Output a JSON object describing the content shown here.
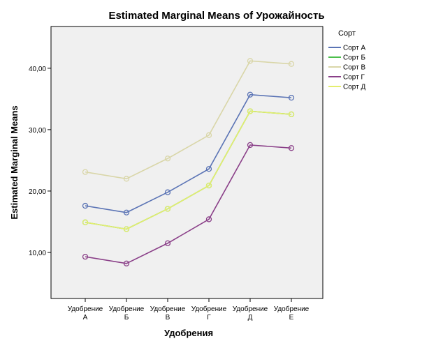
{
  "chart_data": {
    "type": "line",
    "title": "Estimated Marginal Means of Урожайность",
    "xlabel": "Удобрения",
    "ylabel": "Estimated Marginal Means",
    "categories": [
      [
        "Удобрение",
        "А"
      ],
      [
        "Удобрение",
        "Б"
      ],
      [
        "Удобрение",
        "В"
      ],
      [
        "Удобрение",
        "Г"
      ],
      [
        "Удобрение",
        "Д"
      ],
      [
        "Удобрение",
        "Е"
      ]
    ],
    "ylim": [
      2.5,
      46.8
    ],
    "yticks": [
      10,
      20,
      30,
      40
    ],
    "ytick_labels": [
      "10,00",
      "20,00",
      "30,00",
      "40,00"
    ],
    "grid": false,
    "legend": {
      "title": "Сорт",
      "position": "right"
    },
    "series": [
      {
        "name": "Сорт А",
        "color": "#5b74b5",
        "values": [
          17.6,
          16.5,
          19.8,
          23.6,
          35.7,
          35.2
        ]
      },
      {
        "name": "Сорт Б",
        "color": "#4cbf4c",
        "values": [
          14.9,
          13.8,
          17.1,
          20.9,
          33.0,
          32.5
        ]
      },
      {
        "name": "Сорт В",
        "color": "#d9d6a8",
        "values": [
          23.1,
          22.0,
          25.3,
          29.1,
          41.2,
          40.7
        ]
      },
      {
        "name": "Сорт Г",
        "color": "#8a3f88",
        "values": [
          9.3,
          8.2,
          11.5,
          15.4,
          27.5,
          27.0
        ]
      },
      {
        "name": "Сорт Д",
        "color": "#e4ee6e",
        "values": [
          14.9,
          13.8,
          17.1,
          20.9,
          33.0,
          32.5
        ]
      }
    ]
  }
}
